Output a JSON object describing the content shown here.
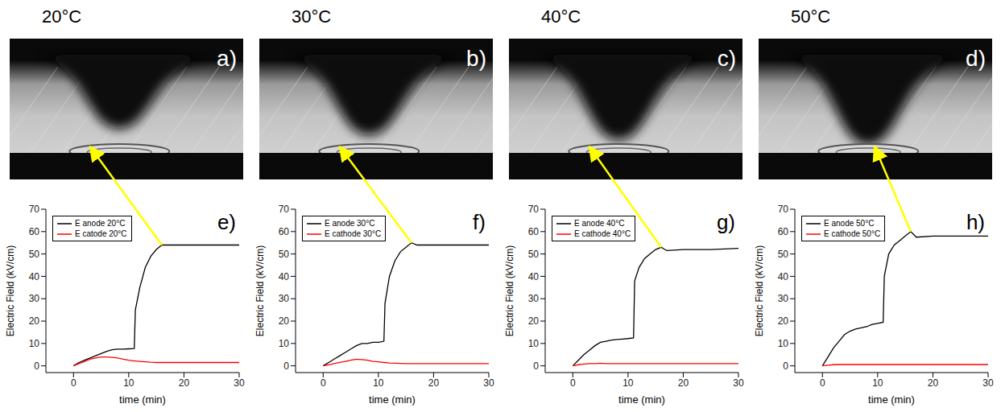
{
  "panels": [
    {
      "heading": "20°C",
      "image_label": "a)"
    },
    {
      "heading": "30°C",
      "image_label": "b)"
    },
    {
      "heading": "40°C",
      "image_label": "c)"
    },
    {
      "heading": "50°C",
      "image_label": "d)"
    }
  ],
  "chart_data": [
    {
      "type": "line",
      "panel": "e)",
      "x_label": "time (min)",
      "y_label": "Electric Field  (kV/cm)",
      "xlim": [
        -5,
        30
      ],
      "xticks": [
        0,
        10,
        20,
        30
      ],
      "ylim": [
        -3,
        70
      ],
      "yticks": [
        0,
        10,
        20,
        30,
        40,
        50,
        60,
        70
      ],
      "legend": "upper left",
      "x": [
        0,
        1,
        2,
        3,
        4,
        5,
        6,
        7,
        8,
        9,
        10,
        11,
        11.2,
        12,
        13,
        14,
        15,
        16,
        17,
        20,
        25,
        30
      ],
      "series": [
        {
          "name": "E anode 20°C",
          "color": "#000000",
          "values": [
            0,
            1.5,
            2.5,
            3.5,
            4.5,
            5.5,
            6.5,
            7.2,
            7.5,
            7.5,
            7.6,
            7.7,
            25,
            35,
            44,
            49,
            52,
            54,
            54,
            54,
            54,
            54
          ]
        },
        {
          "name": "E catode 20°C",
          "color": "#ff0000",
          "values": [
            0,
            1,
            2,
            3,
            3.5,
            4,
            4,
            3.8,
            3.5,
            3,
            2.5,
            2.2,
            2.2,
            2,
            1.8,
            1.6,
            1.5,
            1.5,
            1.5,
            1.5,
            1.5,
            1.5
          ]
        }
      ]
    },
    {
      "type": "line",
      "panel": "f)",
      "x_label": "time (min)",
      "y_label": "Electric Field  (kV/cm)",
      "xlim": [
        -5,
        30
      ],
      "xticks": [
        0,
        10,
        20,
        30
      ],
      "ylim": [
        -3,
        70
      ],
      "yticks": [
        0,
        10,
        20,
        30,
        40,
        50,
        60,
        70
      ],
      "legend": "upper left",
      "x": [
        0,
        1,
        2,
        3,
        4,
        5,
        6,
        7,
        8,
        9,
        10,
        11,
        11.2,
        12,
        13,
        14,
        15,
        16,
        17,
        20,
        25,
        30
      ],
      "series": [
        {
          "name": "E anode 30°C",
          "color": "#000000",
          "values": [
            0,
            1.5,
            3,
            4.5,
            6,
            7.5,
            9,
            10,
            10,
            10.5,
            10.5,
            11,
            28,
            40,
            47,
            51,
            53,
            55,
            54,
            54,
            54,
            54
          ]
        },
        {
          "name": "E cathode 30°C",
          "color": "#ff0000",
          "values": [
            0,
            0.5,
            1,
            1.5,
            2,
            2.5,
            3,
            2.8,
            2.5,
            2,
            1.8,
            1.5,
            1.5,
            1.3,
            1.2,
            1.1,
            1,
            1,
            1,
            1,
            1,
            1
          ]
        }
      ]
    },
    {
      "type": "line",
      "panel": "g)",
      "x_label": "time (min)",
      "y_label": "Electric Field  (kV/cm)",
      "xlim": [
        -5,
        30
      ],
      "xticks": [
        0,
        10,
        20,
        30
      ],
      "ylim": [
        -3,
        70
      ],
      "yticks": [
        0,
        10,
        20,
        30,
        40,
        50,
        60,
        70
      ],
      "legend": "upper left",
      "x": [
        0,
        1,
        2,
        3,
        4,
        5,
        6,
        7,
        8,
        9,
        10,
        11,
        11.2,
        12,
        13,
        14,
        15,
        16,
        17,
        20,
        25,
        30
      ],
      "series": [
        {
          "name": "E anode 40°C",
          "color": "#000000",
          "values": [
            0,
            2.5,
            5,
            7,
            9,
            10.5,
            11,
            11.5,
            11.8,
            12,
            12.2,
            12.5,
            38,
            44,
            48,
            50,
            52,
            53,
            51.5,
            52,
            52,
            52.5
          ]
        },
        {
          "name": "E cathode 40°C",
          "color": "#ff0000",
          "values": [
            0,
            0.5,
            0.8,
            1,
            1,
            1.2,
            1,
            1,
            1,
            1,
            1,
            1,
            1,
            1,
            1,
            1,
            1,
            1,
            1,
            1,
            1,
            1
          ]
        }
      ]
    },
    {
      "type": "line",
      "panel": "h)",
      "x_label": "time (min)",
      "y_label": "Electric Field  (kV/cm)",
      "xlim": [
        -5,
        30
      ],
      "xticks": [
        0,
        10,
        20,
        30
      ],
      "ylim": [
        -3,
        70
      ],
      "yticks": [
        0,
        10,
        20,
        30,
        40,
        50,
        60,
        70
      ],
      "legend": "upper left",
      "x": [
        0,
        1,
        2,
        3,
        4,
        5,
        6,
        7,
        8,
        9,
        10,
        11,
        11.2,
        12,
        13,
        14,
        15,
        16,
        17,
        20,
        25,
        30
      ],
      "series": [
        {
          "name": "E anode 50°C",
          "color": "#000000",
          "values": [
            0,
            4,
            8,
            11,
            14,
            15.5,
            16.5,
            17,
            17.5,
            18.5,
            19,
            19.5,
            40,
            50,
            54,
            56,
            58,
            60,
            57.5,
            58,
            58,
            58
          ]
        },
        {
          "name": "E cathode 50°C",
          "color": "#ff0000",
          "values": [
            0,
            0.3,
            0.5,
            0.6,
            0.6,
            0.6,
            0.6,
            0.6,
            0.6,
            0.6,
            0.6,
            0.6,
            0.6,
            0.6,
            0.6,
            0.6,
            0.6,
            0.6,
            0.6,
            0.6,
            0.6,
            0.6
          ]
        }
      ]
    }
  ]
}
